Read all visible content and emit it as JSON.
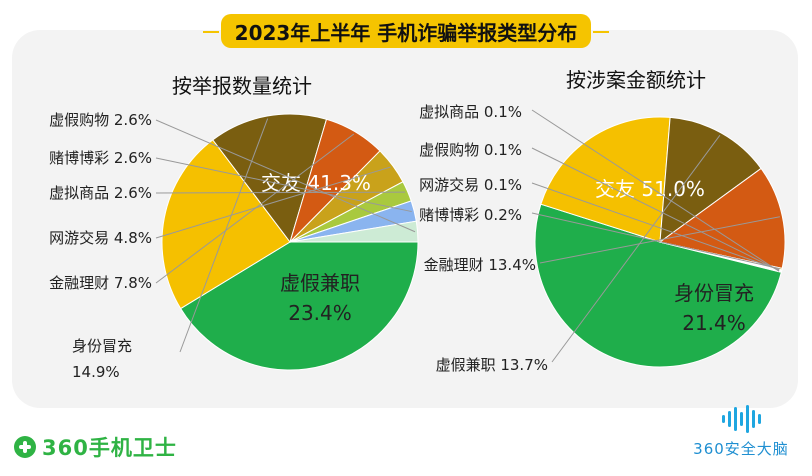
{
  "title": "2023年上半年 手机诈骗举报类型分布",
  "chart_data": [
    {
      "type": "pie",
      "title": "按举报数量统计",
      "slices": [
        {
          "label": "交友",
          "pct_text": "41.3%",
          "value": 41.3,
          "color": "#1fae4b"
        },
        {
          "label": "虚假兼职",
          "pct_text": "23.4%",
          "value": 23.4,
          "color": "#f5c000"
        },
        {
          "label": "身份冒充",
          "pct_text": "14.9%",
          "value": 14.9,
          "color": "#7a5e10"
        },
        {
          "label": "金融理财",
          "pct_text": "7.8%",
          "value": 7.8,
          "color": "#d35a13"
        },
        {
          "label": "网游交易",
          "pct_text": "4.8%",
          "value": 4.8,
          "color": "#c9a21b"
        },
        {
          "label": "虚拟商品",
          "pct_text": "2.6%",
          "value": 2.6,
          "color": "#a9c93e"
        },
        {
          "label": "赌博博彩",
          "pct_text": "2.6%",
          "value": 2.6,
          "color": "#8ab4ef"
        },
        {
          "label": "虚假购物",
          "pct_text": "2.6%",
          "value": 2.6,
          "color": "#cdebd5"
        }
      ]
    },
    {
      "type": "pie",
      "title": "按涉案金额统计",
      "slices": [
        {
          "label": "交友",
          "pct_text": "51.0%",
          "value": 51.0,
          "color": "#1fae4b"
        },
        {
          "label": "身份冒充",
          "pct_text": "21.4%",
          "value": 21.4,
          "color": "#f5c000"
        },
        {
          "label": "虚假兼职",
          "pct_text": "13.7%",
          "value": 13.7,
          "color": "#7a5e10"
        },
        {
          "label": "金融理财",
          "pct_text": "13.4%",
          "value": 13.4,
          "color": "#d35a13"
        },
        {
          "label": "赌博博彩",
          "pct_text": "0.2%",
          "value": 0.2,
          "color": "#c9a21b"
        },
        {
          "label": "网游交易",
          "pct_text": "0.1%",
          "value": 0.1,
          "color": "#a9c93e"
        },
        {
          "label": "虚假购物",
          "pct_text": "0.1%",
          "value": 0.1,
          "color": "#8ab4ef"
        },
        {
          "label": "虚拟商品",
          "pct_text": "0.1%",
          "value": 0.1,
          "color": "#cdebd5"
        }
      ]
    }
  ],
  "brand_left": "360手机卫士",
  "brand_right": "360安全大脑"
}
